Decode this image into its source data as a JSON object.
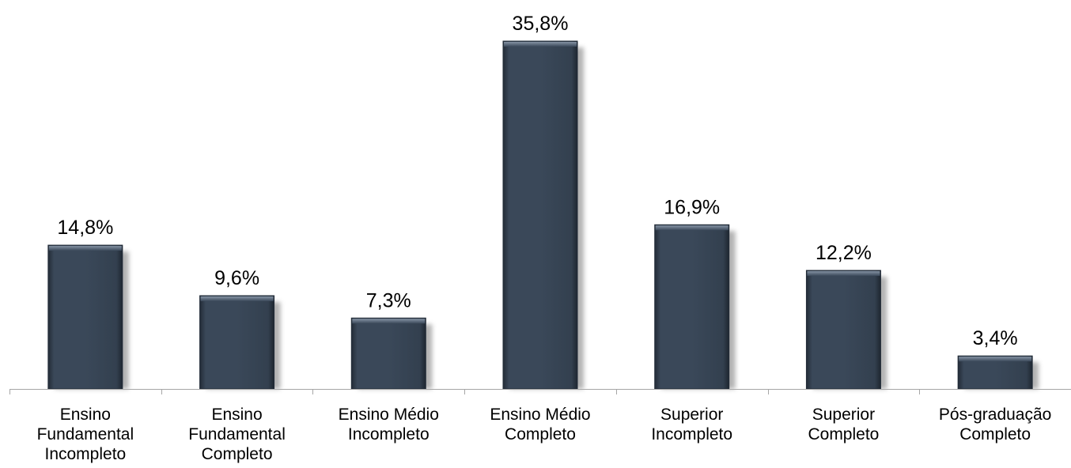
{
  "chart_data": {
    "type": "bar",
    "categories": [
      [
        "Ensino",
        "Fundamental",
        "Incompleto"
      ],
      [
        "Ensino",
        "Fundamental",
        "Completo"
      ],
      [
        "Ensino Médio",
        "Incompleto"
      ],
      [
        "Ensino Médio",
        "Completo"
      ],
      [
        "Superior",
        "Incompleto"
      ],
      [
        "Superior",
        "Completo"
      ],
      [
        "Pós-graduação",
        "Completo"
      ]
    ],
    "values": [
      14.8,
      9.6,
      7.3,
      35.8,
      16.9,
      12.2,
      3.4
    ],
    "data_labels": [
      "14,8%",
      "9,6%",
      "7,3%",
      "35,8%",
      "16,9%",
      "12,2%",
      "3,4%"
    ],
    "title": "",
    "xlabel": "",
    "ylabel": "",
    "ylim": [
      0,
      35.8
    ],
    "grid": false,
    "legend": "none",
    "colors": {
      "bar": "#374556",
      "bar_edge": "#222c38",
      "shadow": "#9a9a9a",
      "axis": "#a6a6a6"
    }
  }
}
